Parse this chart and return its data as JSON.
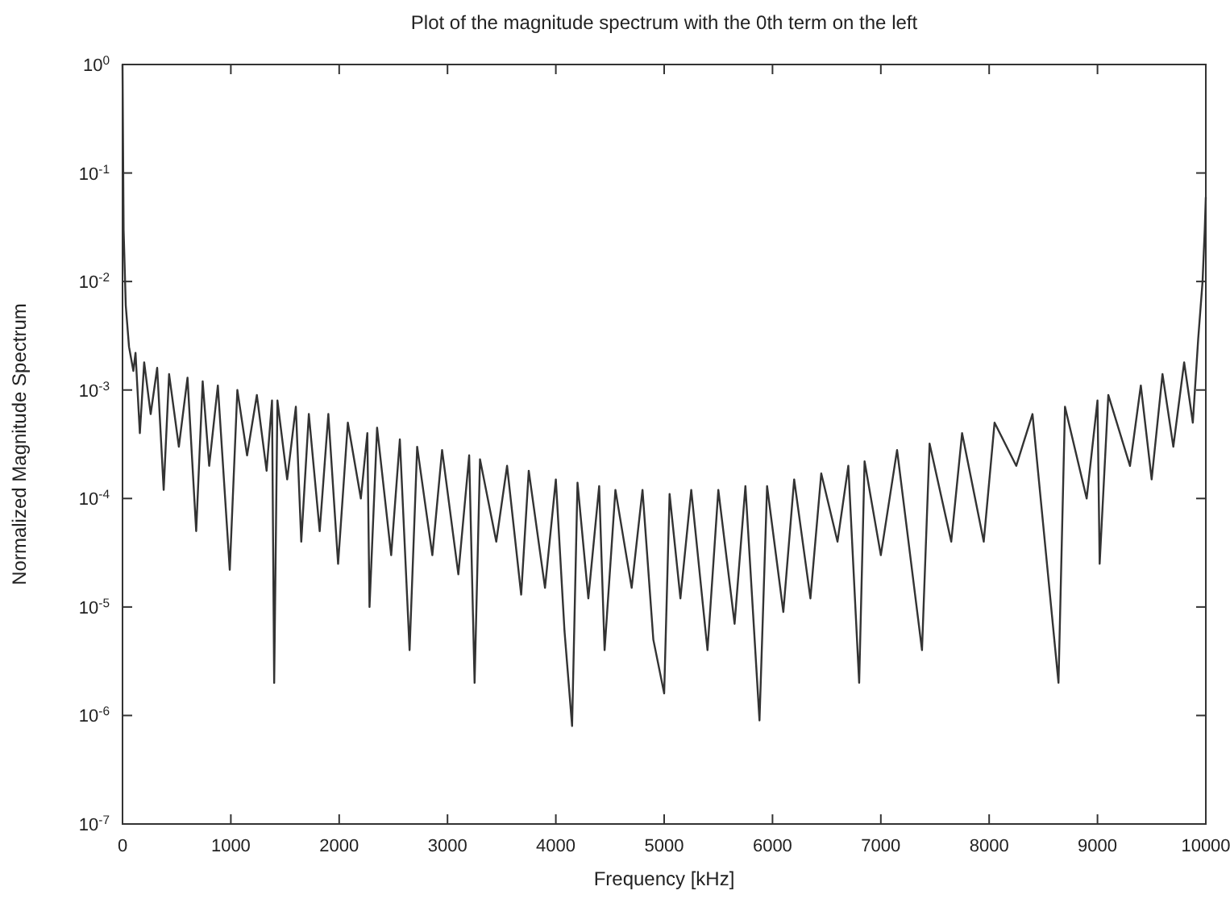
{
  "chart_data": {
    "type": "line",
    "title": "Plot of the magnitude spectrum with the 0th term on the left",
    "xlabel": "Frequency [kHz]",
    "ylabel": "Normalized Magnitude Spectrum",
    "log": "y",
    "grid": false,
    "marker": "none",
    "line_style": "solid",
    "xlim": [
      0,
      10000
    ],
    "xticks": [
      0,
      1000,
      2000,
      3000,
      4000,
      5000,
      6000,
      7000,
      8000,
      9000,
      10000
    ],
    "ylim": [
      1e-07,
      1
    ],
    "yticks": [
      {
        "value": 1e-07,
        "label": "10$^{-7}$"
      },
      {
        "value": 1e-06,
        "label": "10$^{-6}$"
      },
      {
        "value": 1e-05,
        "label": "10$^{-5}$"
      },
      {
        "value": 0.0001,
        "label": "10$^{-4}$"
      },
      {
        "value": 0.001,
        "label": "10$^{-3}$"
      },
      {
        "value": 0.01,
        "label": "10$^{-2}$"
      },
      {
        "value": 0.1,
        "label": "10$^{-1}$"
      },
      {
        "value": 1,
        "label": "10$^{0}$"
      }
    ],
    "series": [
      {
        "color": "#333333",
        "x": [
          0,
          10,
          30,
          60,
          100,
          120,
          160,
          200,
          260,
          320,
          380,
          430,
          520,
          600,
          680,
          740,
          800,
          880,
          990,
          1060,
          1150,
          1240,
          1330,
          1380,
          1400,
          1430,
          1520,
          1600,
          1650,
          1720,
          1820,
          1900,
          1990,
          2080,
          2200,
          2260,
          2280,
          2350,
          2480,
          2560,
          2650,
          2720,
          2860,
          2950,
          3100,
          3200,
          3250,
          3300,
          3450,
          3550,
          3680,
          3750,
          3900,
          4000,
          4080,
          4150,
          4200,
          4300,
          4400,
          4450,
          4550,
          4700,
          4800,
          4900,
          5000,
          5050,
          5150,
          5250,
          5400,
          5500,
          5650,
          5750,
          5880,
          5950,
          6100,
          6200,
          6350,
          6450,
          6600,
          6700,
          6800,
          6850,
          7000,
          7150,
          7380,
          7450,
          7650,
          7750,
          7950,
          8050,
          8250,
          8400,
          8640,
          8700,
          8900,
          9000,
          9020,
          9100,
          9300,
          9400,
          9500,
          9600,
          9700,
          9800,
          9880,
          9930,
          9970,
          9990,
          10000
        ],
        "values": [
          1,
          0.03,
          0.006,
          0.0025,
          0.0015,
          0.0022,
          0.0004,
          0.0018,
          0.0006,
          0.0016,
          0.00012,
          0.0014,
          0.0003,
          0.0013,
          5e-05,
          0.0012,
          0.0002,
          0.0011,
          2.2e-05,
          0.001,
          0.00025,
          0.0009,
          0.00018,
          0.0008,
          2e-06,
          0.0008,
          0.00015,
          0.0007,
          4e-05,
          0.0006,
          5e-05,
          0.0006,
          2.5e-05,
          0.0005,
          0.0001,
          0.0004,
          1e-05,
          0.00045,
          3e-05,
          0.00035,
          4e-06,
          0.0003,
          3e-05,
          0.00028,
          2e-05,
          0.00025,
          2e-06,
          0.00023,
          4e-05,
          0.0002,
          1.3e-05,
          0.00018,
          1.5e-05,
          0.00015,
          6e-06,
          8e-07,
          0.00014,
          1.2e-05,
          0.00013,
          4e-06,
          0.00012,
          1.5e-05,
          0.00012,
          5e-06,
          1.6e-06,
          0.00011,
          1.2e-05,
          0.00012,
          4e-06,
          0.00012,
          7e-06,
          0.00013,
          9e-07,
          0.00013,
          9e-06,
          0.00015,
          1.2e-05,
          0.00017,
          4e-05,
          0.0002,
          2e-06,
          0.00022,
          3e-05,
          0.00028,
          4e-06,
          0.00032,
          4e-05,
          0.0004,
          4e-05,
          0.0005,
          0.0002,
          0.0006,
          2e-06,
          0.0007,
          0.0001,
          0.0008,
          2.5e-05,
          0.0009,
          0.0002,
          0.0011,
          0.00015,
          0.0014,
          0.0003,
          0.0018,
          0.0005,
          0.003,
          0.01,
          0.03,
          0.06
        ]
      }
    ]
  }
}
